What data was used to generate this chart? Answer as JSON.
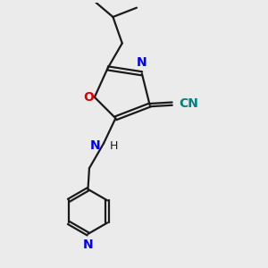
{
  "bg_color": "#ebebeb",
  "bond_color": "#1a1a1a",
  "N_color": "#0000ee",
  "O_color": "#dd0000",
  "CN_color": "#008080",
  "line_width": 1.6,
  "figsize": [
    3.0,
    3.0
  ],
  "dpi": 100,
  "xlim": [
    0,
    10
  ],
  "ylim": [
    0,
    10
  ],
  "font_size": 10
}
